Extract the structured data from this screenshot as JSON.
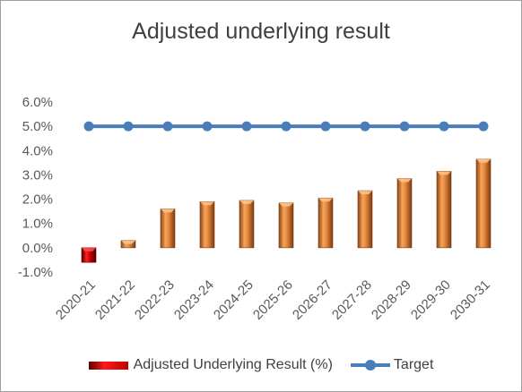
{
  "chart_data": {
    "type": "bar",
    "title": "Adjusted underlying result",
    "categories": [
      "2020-21",
      "2021-22",
      "2022-23",
      "2023-24",
      "2024-25",
      "2025-26",
      "2026-27",
      "2027-28",
      "2028-29",
      "2029-30",
      "2030-31"
    ],
    "series": [
      {
        "name": "Adjusted Underlying Result (%)",
        "type": "bar",
        "values": [
          -0.6,
          0.3,
          1.6,
          1.9,
          1.95,
          1.85,
          2.05,
          2.35,
          2.85,
          3.15,
          3.65
        ],
        "color": "#e07b39",
        "negative_color": "#c00000"
      },
      {
        "name": "Target",
        "type": "line",
        "values": [
          5.0,
          5.0,
          5.0,
          5.0,
          5.0,
          5.0,
          5.0,
          5.0,
          5.0,
          5.0,
          5.0
        ],
        "color": "#4a7ebb"
      }
    ],
    "yticks": [
      "6.0%",
      "5.0%",
      "4.0%",
      "3.0%",
      "2.0%",
      "1.0%",
      "0.0%",
      "-1.0%"
    ],
    "ylim": [
      -1.0,
      6.0
    ],
    "grid": false,
    "legend": "bottom"
  },
  "legend": {
    "bar_label": "Adjusted Underlying Result (%)",
    "line_label": "Target"
  }
}
